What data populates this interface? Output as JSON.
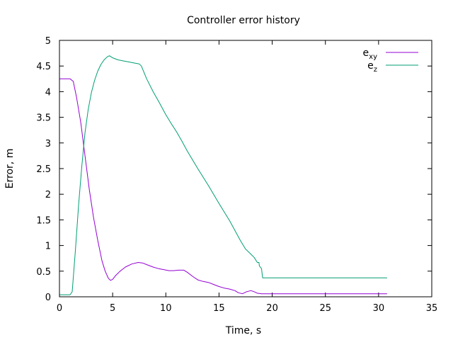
{
  "chart_data": {
    "type": "line",
    "title": "Controller error history",
    "xlabel": "Time, s",
    "ylabel": "Error, m",
    "xlim": [
      0,
      35
    ],
    "ylim": [
      0,
      5
    ],
    "xticks": [
      0,
      5,
      10,
      15,
      20,
      25,
      30,
      35
    ],
    "yticks": [
      0,
      0.5,
      1,
      1.5,
      2,
      2.5,
      3,
      3.5,
      4,
      4.5,
      5
    ],
    "xtick_labels": [
      "0",
      "5",
      "10",
      "15",
      "20",
      "25",
      "30",
      "35"
    ],
    "ytick_labels": [
      "0",
      "0.5",
      "1",
      "1.5",
      "2",
      "2.5",
      "3",
      "3.5",
      "4",
      "4.5",
      "5"
    ],
    "grid": false,
    "legend_position": "top-right",
    "series": [
      {
        "name": "e_xy",
        "legend_base": "e",
        "legend_sub": "xy",
        "color": "#9400d3",
        "x": [
          0,
          1.0,
          1.3,
          1.6,
          2.0,
          2.4,
          2.8,
          3.2,
          3.6,
          4.0,
          4.3,
          4.6,
          4.8,
          5.0,
          5.3,
          5.7,
          6.2,
          6.8,
          7.4,
          7.8,
          8.3,
          8.8,
          9.3,
          9.8,
          10.3,
          10.7,
          11.2,
          11.7,
          12.0,
          12.5,
          13.0,
          13.5,
          14.0,
          14.5,
          15.0,
          15.5,
          16.0,
          16.5,
          16.8,
          17.2,
          17.6,
          18.0,
          18.3,
          18.6,
          19.0,
          20.0,
          25.0,
          30.8
        ],
        "y": [
          4.25,
          4.25,
          4.2,
          3.9,
          3.4,
          2.75,
          2.1,
          1.55,
          1.1,
          0.7,
          0.5,
          0.36,
          0.32,
          0.34,
          0.42,
          0.5,
          0.58,
          0.64,
          0.67,
          0.66,
          0.62,
          0.58,
          0.55,
          0.53,
          0.51,
          0.51,
          0.52,
          0.52,
          0.48,
          0.4,
          0.33,
          0.3,
          0.28,
          0.24,
          0.2,
          0.17,
          0.15,
          0.12,
          0.08,
          0.06,
          0.1,
          0.12,
          0.1,
          0.07,
          0.06,
          0.06,
          0.06,
          0.06
        ]
      },
      {
        "name": "e_z",
        "legend_base": "e",
        "legend_sub": "z",
        "color": "#009e73",
        "x": [
          0,
          1.0,
          1.2,
          1.5,
          1.8,
          2.1,
          2.4,
          2.7,
          3.0,
          3.3,
          3.6,
          3.9,
          4.2,
          4.5,
          4.7,
          4.85,
          5.0,
          5.5,
          6.0,
          6.5,
          7.0,
          7.5,
          7.7,
          8.2,
          8.8,
          9.4,
          10.0,
          10.5,
          11.0,
          11.5,
          12.0,
          13.0,
          14.0,
          15.0,
          16.0,
          17.0,
          17.5,
          18.0,
          18.3,
          18.6,
          18.75,
          18.8,
          19.0,
          19.1,
          20.0,
          25.0,
          30.8
        ],
        "y": [
          0.04,
          0.04,
          0.1,
          0.9,
          1.8,
          2.55,
          3.2,
          3.65,
          3.98,
          4.22,
          4.4,
          4.53,
          4.62,
          4.68,
          4.7,
          4.68,
          4.66,
          4.62,
          4.6,
          4.58,
          4.56,
          4.54,
          4.5,
          4.25,
          4.0,
          3.78,
          3.55,
          3.38,
          3.22,
          3.04,
          2.85,
          2.5,
          2.17,
          1.82,
          1.48,
          1.1,
          0.93,
          0.83,
          0.77,
          0.67,
          0.67,
          0.6,
          0.55,
          0.37,
          0.37,
          0.37,
          0.37
        ]
      }
    ]
  }
}
